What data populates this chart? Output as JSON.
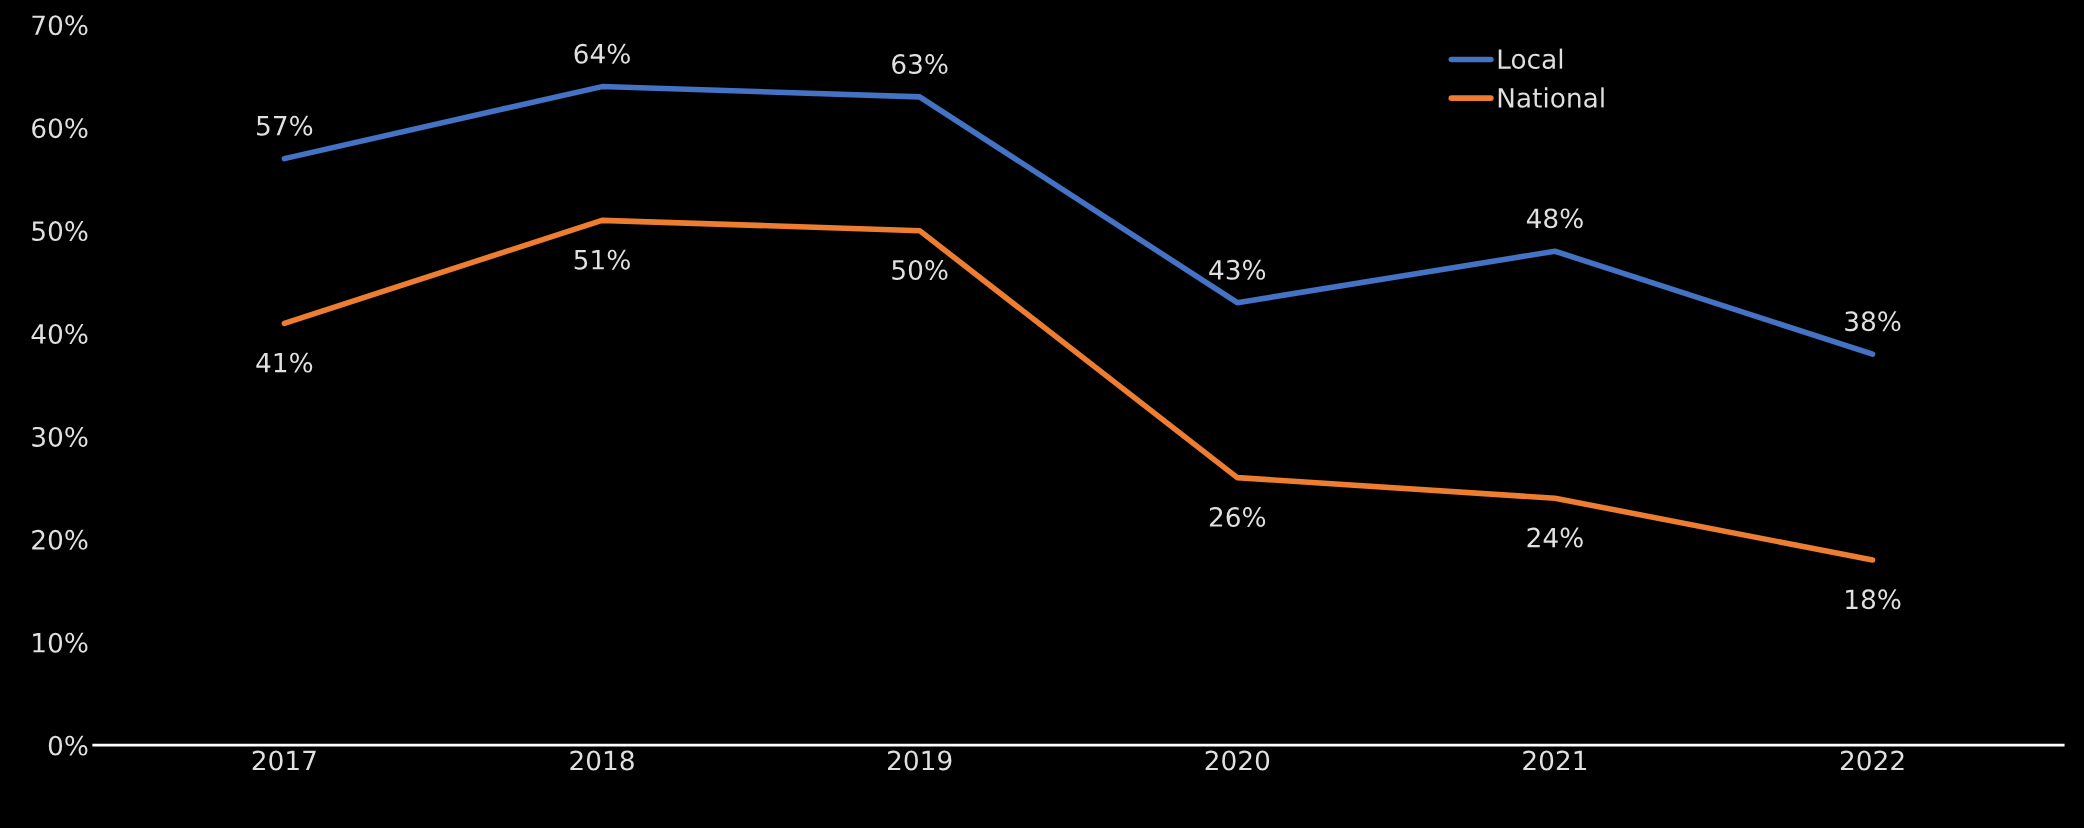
{
  "chart_data": {
    "type": "line",
    "categories": [
      "2017",
      "2018",
      "2019",
      "2020",
      "2021",
      "2022"
    ],
    "series": [
      {
        "name": "Local",
        "color": "#4472c4",
        "values": [
          57,
          64,
          63,
          43,
          48,
          38
        ],
        "value_labels": [
          "57%",
          "64%",
          "63%",
          "43%",
          "48%",
          "38%"
        ]
      },
      {
        "name": "National",
        "color": "#ed7d31",
        "values": [
          41,
          51,
          50,
          26,
          24,
          18
        ],
        "value_labels": [
          "41%",
          "51%",
          "50%",
          "26%",
          "24%",
          "18%"
        ]
      }
    ],
    "ylim": [
      0,
      70
    ],
    "yticks": [
      {
        "value": 0,
        "label": "0%"
      },
      {
        "value": 10,
        "label": "10%"
      },
      {
        "value": 20,
        "label": "20%"
      },
      {
        "value": 30,
        "label": "30%"
      },
      {
        "value": 40,
        "label": "40%"
      },
      {
        "value": 50,
        "label": "50%"
      },
      {
        "value": 60,
        "label": "60%"
      },
      {
        "value": 70,
        "label": "70%"
      }
    ],
    "grid": false,
    "legend": "top right",
    "marker": "none",
    "line_style": "solid"
  }
}
